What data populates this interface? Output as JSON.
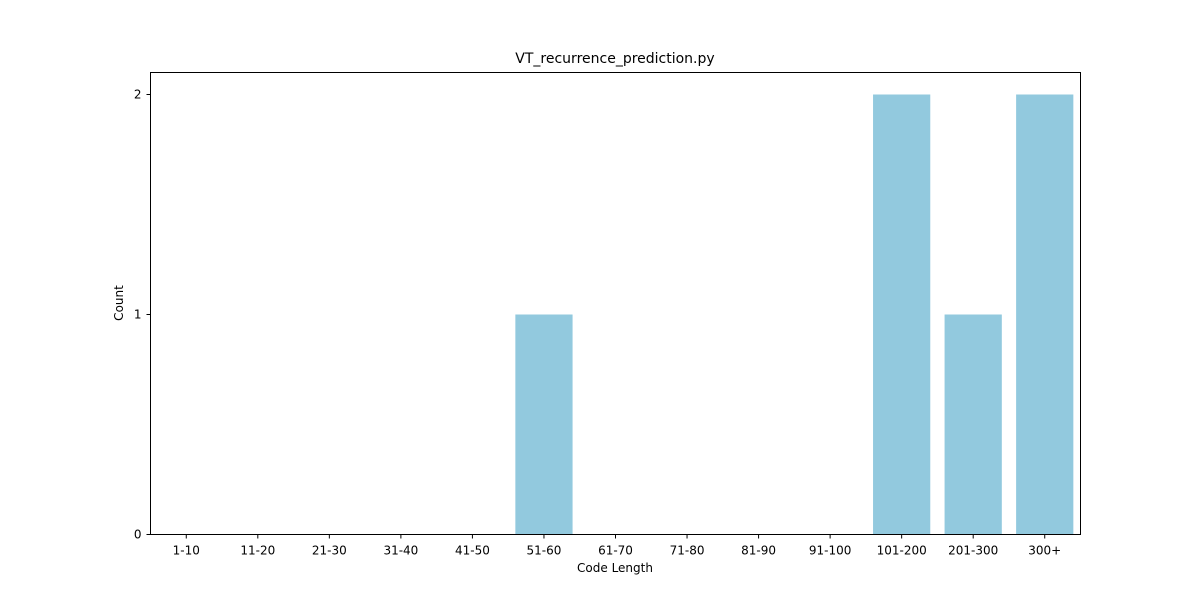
{
  "chart_data": {
    "type": "bar",
    "title": "VT_recurrence_prediction.py",
    "xlabel": "Code Length",
    "ylabel": "Count",
    "categories": [
      "1-10",
      "11-20",
      "21-30",
      "31-40",
      "41-50",
      "51-60",
      "61-70",
      "71-80",
      "81-90",
      "91-100",
      "101-200",
      "201-300",
      "300+"
    ],
    "values": [
      0,
      0,
      0,
      0,
      0,
      1,
      0,
      0,
      0,
      0,
      2,
      1,
      2
    ],
    "ylim": [
      0,
      2.1
    ],
    "yticks": [
      0,
      1,
      2
    ],
    "grid": false,
    "legend": "none",
    "bar_color": "#92c9de"
  }
}
